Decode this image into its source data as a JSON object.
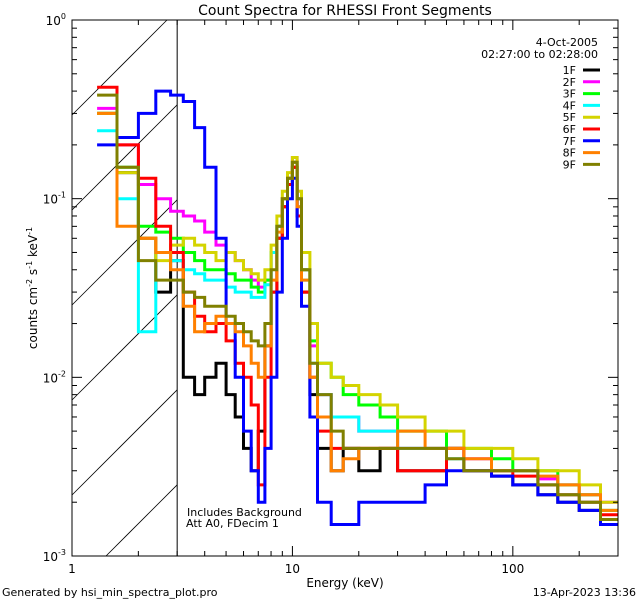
{
  "chart_data": {
    "type": "line",
    "title": "Count Spectra for RHESSI Front Segments",
    "xlabel": "Energy (keV)",
    "ylabel": {
      "base": "counts cm",
      "exp1": "-2",
      "mid1": " s",
      "exp2": "-1",
      "mid2": " keV",
      "exp3": "-1"
    },
    "xscale": "log",
    "yscale": "log",
    "xlim": [
      1,
      300
    ],
    "ylim": [
      0.001,
      1
    ],
    "x_ticks": [
      {
        "v": 1,
        "label": "1"
      },
      {
        "v": 10,
        "label": "10"
      },
      {
        "v": 100,
        "label": "100"
      }
    ],
    "y_ticks": [
      {
        "v": 1,
        "base": "10",
        "exp": "0"
      },
      {
        "v": 0.1,
        "base": "10",
        "exp": "-1"
      },
      {
        "v": 0.01,
        "base": "10",
        "exp": "-2"
      },
      {
        "v": 0.001,
        "base": "10",
        "exp": "-3"
      }
    ],
    "hatched_region_keV": [
      1,
      3
    ],
    "legend": {
      "placement": "top-right",
      "date": "4-Oct-2005",
      "time_range": "02:27:00 to 02:28:00"
    },
    "annotations": [
      "Includes Background",
      "Att A0, FDecim 1"
    ],
    "bin_edges_keV": [
      1.3,
      1.6,
      2.0,
      2.4,
      2.8,
      3.2,
      3.6,
      4.0,
      4.5,
      5.0,
      5.5,
      6.0,
      6.5,
      7.0,
      7.5,
      8.0,
      8.5,
      9.0,
      9.5,
      10,
      10.5,
      11,
      12,
      13,
      15,
      17,
      20,
      25,
      30,
      40,
      50,
      60,
      80,
      100,
      130,
      160,
      200,
      250,
      300
    ],
    "series": [
      {
        "name": "1F",
        "color": "#000000",
        "values": [
          0.3,
          0.14,
          0.06,
          0.03,
          0.045,
          0.01,
          0.008,
          0.01,
          0.012,
          0.008,
          0.006,
          0.004,
          0.003,
          0.005,
          0.015,
          0.03,
          0.06,
          0.09,
          0.12,
          0.15,
          0.08,
          0.03,
          0.008,
          0.004,
          0.003,
          0.004,
          0.003,
          0.004,
          0.003,
          0.003,
          0.004,
          0.003,
          0.0028,
          0.0025,
          0.0022,
          0.002,
          0.0018,
          0.0015
        ]
      },
      {
        "name": "2F",
        "color": "#ff00ff",
        "values": [
          0.32,
          0.2,
          0.12,
          0.1,
          0.085,
          0.08,
          0.075,
          0.065,
          0.055,
          0.05,
          0.045,
          0.04,
          0.035,
          0.032,
          0.035,
          0.05,
          0.07,
          0.1,
          0.13,
          0.17,
          0.1,
          0.04,
          0.015,
          0.008,
          0.006,
          0.006,
          0.005,
          0.005,
          0.004,
          0.004,
          0.004,
          0.0035,
          0.003,
          0.003,
          0.0027,
          0.0025,
          0.0022,
          0.002
        ]
      },
      {
        "name": "3F",
        "color": "#00ff00",
        "values": [
          0.3,
          0.15,
          0.07,
          0.065,
          0.06,
          0.05,
          0.045,
          0.04,
          0.04,
          0.038,
          0.035,
          0.035,
          0.032,
          0.03,
          0.035,
          0.05,
          0.07,
          0.1,
          0.13,
          0.16,
          0.1,
          0.04,
          0.016,
          0.012,
          0.01,
          0.008,
          0.007,
          0.006,
          0.005,
          0.005,
          0.004,
          0.004,
          0.0035,
          0.003,
          0.003,
          0.0025,
          0.0022,
          0.0018
        ]
      },
      {
        "name": "4F",
        "color": "#00ffff",
        "values": [
          0.24,
          0.1,
          0.018,
          0.05,
          0.045,
          0.04,
          0.038,
          0.035,
          0.035,
          0.032,
          0.03,
          0.03,
          0.028,
          0.028,
          0.033,
          0.05,
          0.07,
          0.1,
          0.13,
          0.16,
          0.09,
          0.035,
          0.012,
          0.008,
          0.006,
          0.006,
          0.005,
          0.005,
          0.004,
          0.004,
          0.0035,
          0.003,
          0.003,
          0.003,
          0.0025,
          0.0022,
          0.002,
          0.0016
        ]
      },
      {
        "name": "5F",
        "color": "#d4d400",
        "values": [
          0.3,
          0.14,
          0.06,
          0.045,
          0.055,
          0.06,
          0.055,
          0.05,
          0.045,
          0.05,
          0.045,
          0.04,
          0.038,
          0.035,
          0.04,
          0.055,
          0.08,
          0.11,
          0.14,
          0.17,
          0.11,
          0.05,
          0.02,
          0.012,
          0.01,
          0.009,
          0.008,
          0.007,
          0.006,
          0.005,
          0.005,
          0.004,
          0.004,
          0.0035,
          0.003,
          0.003,
          0.0025,
          0.002
        ]
      },
      {
        "name": "6F",
        "color": "#ff0000",
        "values": [
          0.42,
          0.2,
          0.13,
          0.07,
          0.05,
          0.03,
          0.022,
          0.018,
          0.02,
          0.016,
          0.012,
          0.01,
          0.007,
          0.0025,
          0.01,
          0.03,
          0.06,
          0.09,
          0.12,
          0.15,
          0.08,
          0.03,
          0.01,
          0.005,
          0.004,
          0.004,
          0.004,
          0.004,
          0.003,
          0.003,
          0.004,
          0.003,
          0.003,
          0.0028,
          0.0025,
          0.0022,
          0.002,
          0.0017
        ]
      },
      {
        "name": "7F",
        "color": "#0000ff",
        "values": [
          0.2,
          0.22,
          0.3,
          0.4,
          0.38,
          0.35,
          0.25,
          0.15,
          0.06,
          0.02,
          0.01,
          0.005,
          0.003,
          0.002,
          0.004,
          0.01,
          0.03,
          0.06,
          0.1,
          0.13,
          0.07,
          0.025,
          0.006,
          0.002,
          0.0015,
          0.0015,
          0.002,
          0.002,
          0.002,
          0.0025,
          0.003,
          0.003,
          0.0028,
          0.0025,
          0.0022,
          0.002,
          0.0018,
          0.0015
        ]
      },
      {
        "name": "8F",
        "color": "#ff8000",
        "values": [
          0.3,
          0.07,
          0.06,
          0.05,
          0.04,
          0.025,
          0.018,
          0.02,
          0.022,
          0.02,
          0.018,
          0.015,
          0.012,
          0.01,
          0.015,
          0.035,
          0.065,
          0.1,
          0.13,
          0.16,
          0.09,
          0.035,
          0.01,
          0.006,
          0.003,
          0.0035,
          0.004,
          0.004,
          0.005,
          0.004,
          0.004,
          0.0035,
          0.003,
          0.003,
          0.0028,
          0.0025,
          0.0022,
          0.0018
        ]
      },
      {
        "name": "9F",
        "color": "#808000",
        "values": [
          0.38,
          0.15,
          0.045,
          0.035,
          0.035,
          0.03,
          0.028,
          0.025,
          0.025,
          0.022,
          0.02,
          0.018,
          0.016,
          0.015,
          0.02,
          0.04,
          0.07,
          0.1,
          0.13,
          0.16,
          0.1,
          0.04,
          0.012,
          0.008,
          0.005,
          0.004,
          0.004,
          0.004,
          0.004,
          0.004,
          0.0035,
          0.003,
          0.003,
          0.003,
          0.0025,
          0.0022,
          0.002,
          0.0016
        ]
      }
    ]
  },
  "footer": {
    "generated_by": "Generated by hsi_min_spectra_plot.pro",
    "timestamp": "13-Apr-2023 13:36"
  }
}
